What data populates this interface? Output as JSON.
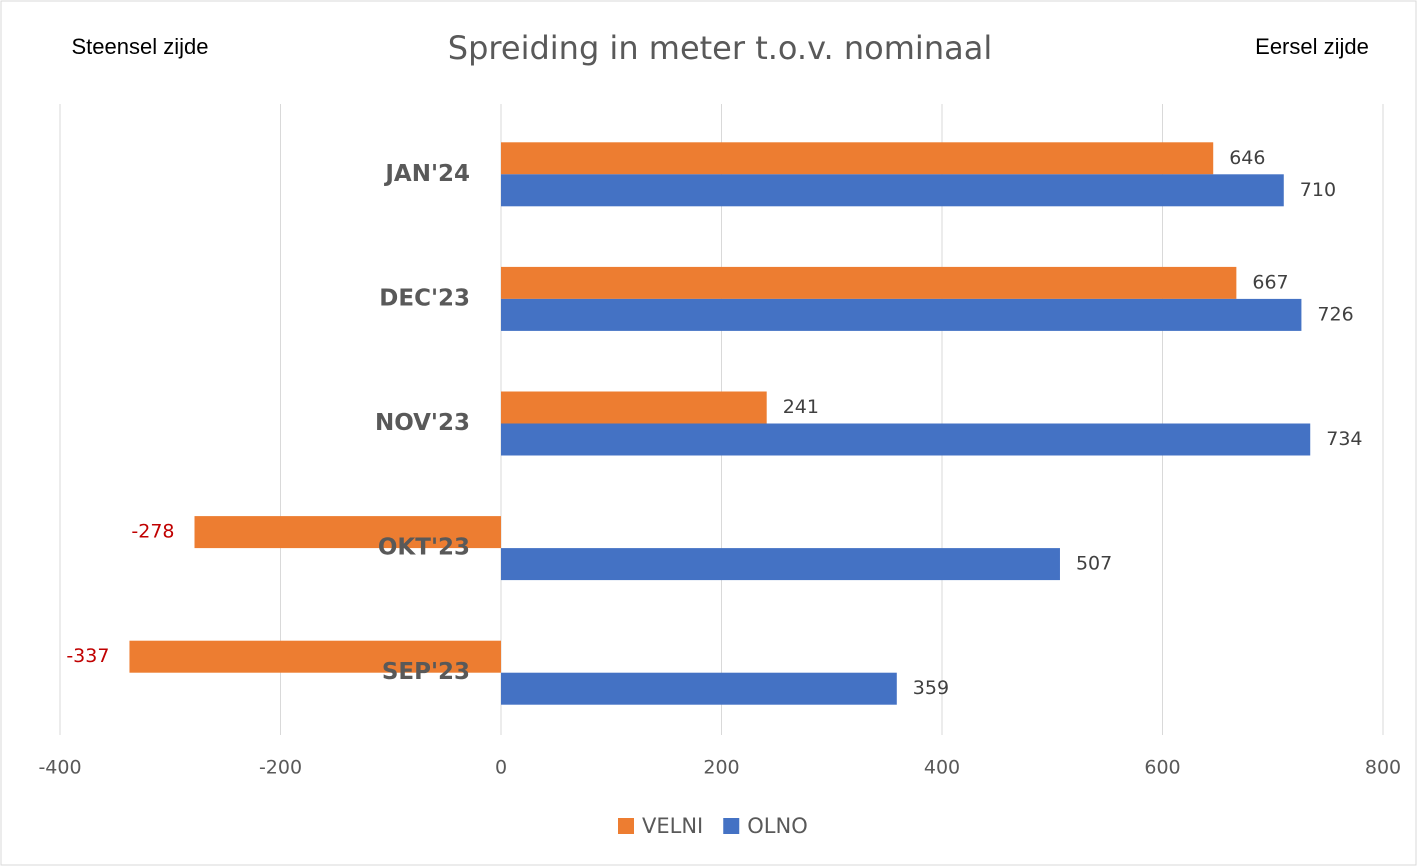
{
  "chart_data": {
    "type": "hbar",
    "title": "Spreiding in meter t.o.v. nominaal",
    "annotations": [
      "Steensel zijde",
      "Eersel zijde"
    ],
    "categories": [
      "JAN'24",
      "DEC'23",
      "NOV'23",
      "OKT'23",
      "SEP'23"
    ],
    "series": [
      {
        "name": "VELNI",
        "color": "#ed7d31",
        "values": [
          646,
          667,
          241,
          -278,
          -337
        ]
      },
      {
        "name": "OLNO",
        "color": "#4472c4",
        "values": [
          710,
          726,
          734,
          507,
          359
        ]
      }
    ],
    "xlim": [
      -400,
      800
    ],
    "xticks": [
      -400,
      -200,
      0,
      200,
      400,
      600,
      800
    ],
    "grid": true,
    "legend": "bottom",
    "negative_label_color": "#c00000"
  }
}
